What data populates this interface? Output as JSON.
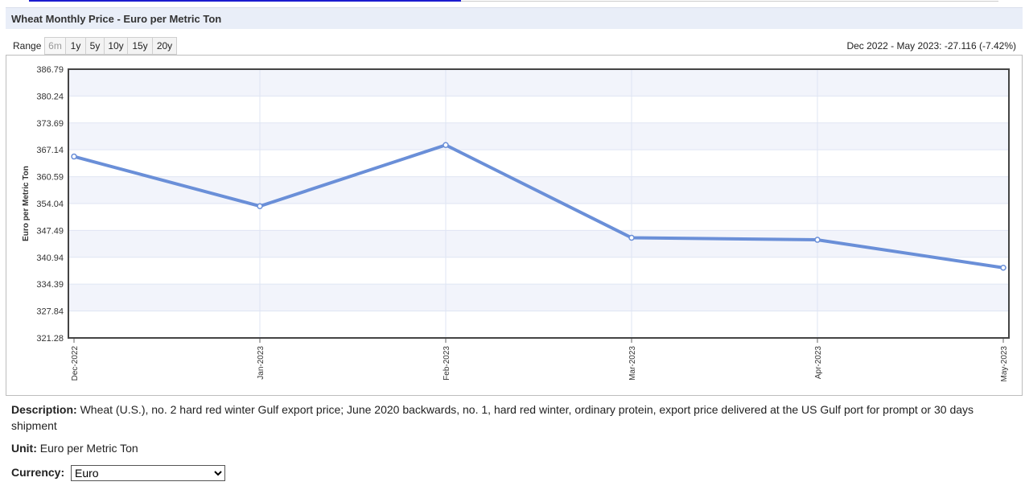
{
  "header": {
    "title": "Wheat Monthly Price - Euro per Metric Ton"
  },
  "range": {
    "label": "Range",
    "buttons": [
      "6m",
      "1y",
      "5y",
      "10y",
      "15y",
      "20y"
    ],
    "active": "6m",
    "change_text": "Dec 2022 - May 2023: -27.116 (-7.42%)"
  },
  "colors": {
    "line": "#6a8fd8",
    "band": "#f2f4fb",
    "grid": "#dfe5f3"
  },
  "chart_data": {
    "type": "line",
    "title": "",
    "xlabel": "",
    "ylabel": "Euro per Metric Ton",
    "categories": [
      "Dec-2022",
      "Jan-2023",
      "Feb-2023",
      "Mar-2023",
      "Apr-2023",
      "May-2023"
    ],
    "series": [
      {
        "values": [
          365.5,
          353.4,
          368.3,
          345.7,
          345.2,
          338.4
        ]
      }
    ],
    "ylim": [
      321.28,
      386.79
    ],
    "yticks": [
      "321.28",
      "327.84",
      "334.39",
      "340.94",
      "347.49",
      "354.04",
      "360.59",
      "367.14",
      "373.69",
      "380.24",
      "386.79"
    ],
    "grid": true,
    "legend": "none"
  },
  "description": {
    "label": "Description:",
    "text": "Wheat (U.S.), no. 2 hard red winter Gulf export price; June 2020 backwards, no. 1, hard red winter, ordinary protein, export price delivered at the US Gulf port for prompt or 30 days shipment"
  },
  "unit": {
    "label": "Unit:",
    "text": "Euro per Metric Ton"
  },
  "currency": {
    "label": "Currency:",
    "selected": "Euro"
  }
}
